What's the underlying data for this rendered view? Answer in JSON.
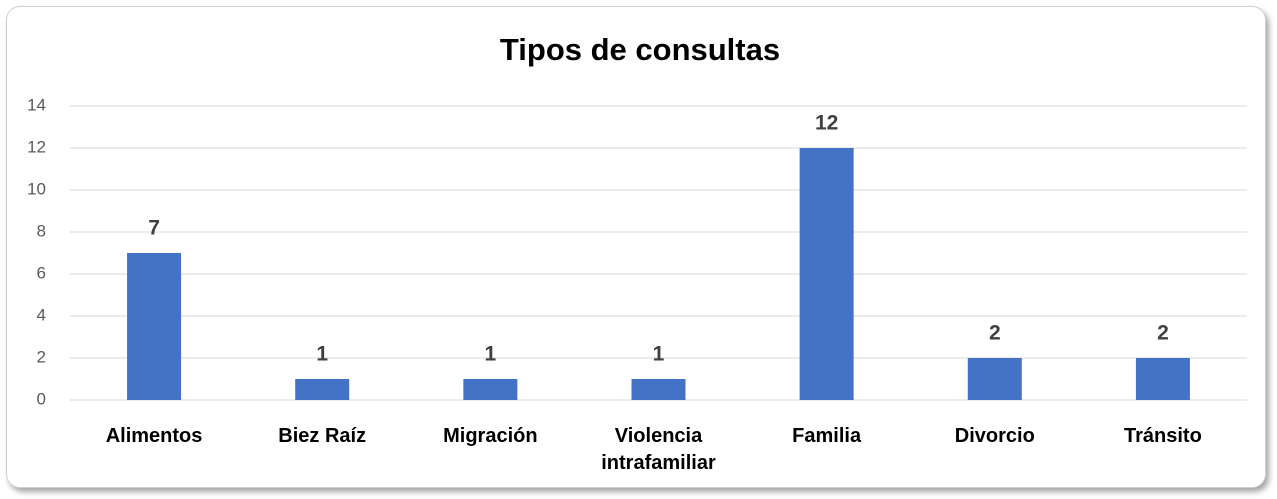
{
  "chart_data": {
    "type": "bar",
    "title": "Tipos de consultas",
    "categories": [
      "Alimentos",
      "Biez Raíz",
      "Migración",
      "Violencia intrafamiliar",
      "Familia",
      "Divorcio",
      "Tránsito"
    ],
    "values": [
      7,
      1,
      1,
      1,
      12,
      2,
      2
    ],
    "color": "#4472c4",
    "ylim": [
      0,
      14
    ],
    "yticks": [
      0,
      2,
      4,
      6,
      8,
      10,
      12,
      14
    ],
    "grid": true
  }
}
